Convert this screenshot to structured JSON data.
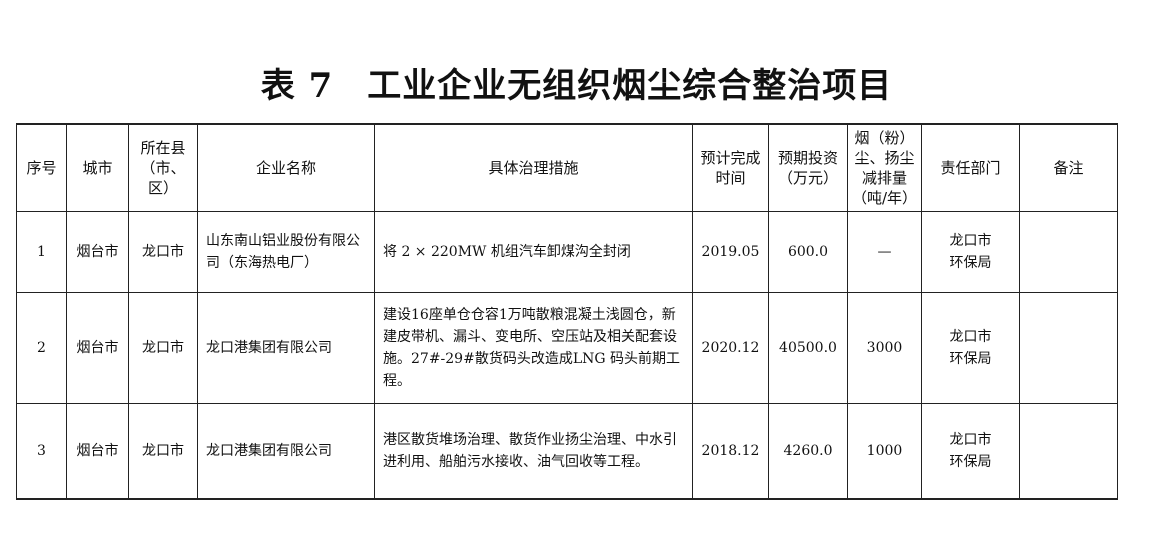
{
  "title": {
    "table_no": "表 7",
    "text": "工业企业无组织烟尘综合整治项目"
  },
  "columns": [
    "序号",
    "城市",
    "所在县\n（市、区）",
    "企业名称",
    "具体治理措施",
    "预计完成\n时间",
    "预期投资\n（万元）",
    "烟（粉）\n尘、扬尘\n减排量\n（吨/年）",
    "责任部门",
    "备注"
  ],
  "rows": [
    {
      "no": "1",
      "city": "烟台市",
      "county": "龙口市",
      "company": "山东南山铝业股份有限公司（东海热电厂）",
      "measures": "将 2 × 220MW 机组汽车卸煤沟全封闭",
      "completion": "2019.05",
      "investment": "600.0",
      "reduction": "—",
      "dept": "龙口市\n环保局",
      "remark": ""
    },
    {
      "no": "2",
      "city": "烟台市",
      "county": "龙口市",
      "company": "龙口港集团有限公司",
      "measures": "建设16座单仓仓容1万吨散粮混凝土浅圆仓，新建皮带机、漏斗、变电所、空压站及相关配套设施。27#-29#散货码头改造成LNG 码头前期工程。",
      "completion": "2020.12",
      "investment": "40500.0",
      "reduction": "3000",
      "dept": "龙口市\n环保局",
      "remark": ""
    },
    {
      "no": "3",
      "city": "烟台市",
      "county": "龙口市",
      "company": "龙口港集团有限公司",
      "measures": "港区散货堆场治理、散货作业扬尘治理、中水引进利用、船舶污水接收、油气回收等工程。",
      "completion": "2018.12",
      "investment": "4260.0",
      "reduction": "1000",
      "dept": "龙口市\n环保局",
      "remark": ""
    }
  ]
}
